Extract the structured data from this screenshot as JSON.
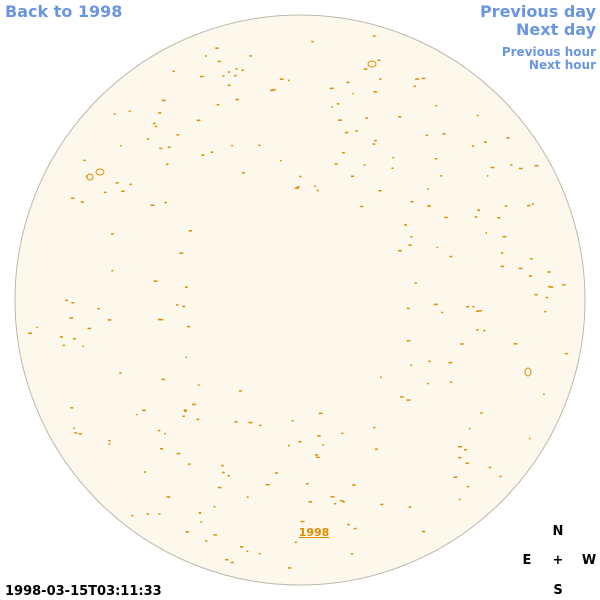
{
  "navigation": {
    "back": "Back to 1998",
    "previous_day": "Previous day",
    "next_day": "Next day",
    "previous_hour": "Previous hour",
    "next_hour": "Next hour"
  },
  "disk": {
    "label": "1998"
  },
  "timestamp": "1998-03-15T03:11:33",
  "compass": {
    "north": "N",
    "east": "E",
    "center": "+",
    "west": "W",
    "south": "S"
  }
}
